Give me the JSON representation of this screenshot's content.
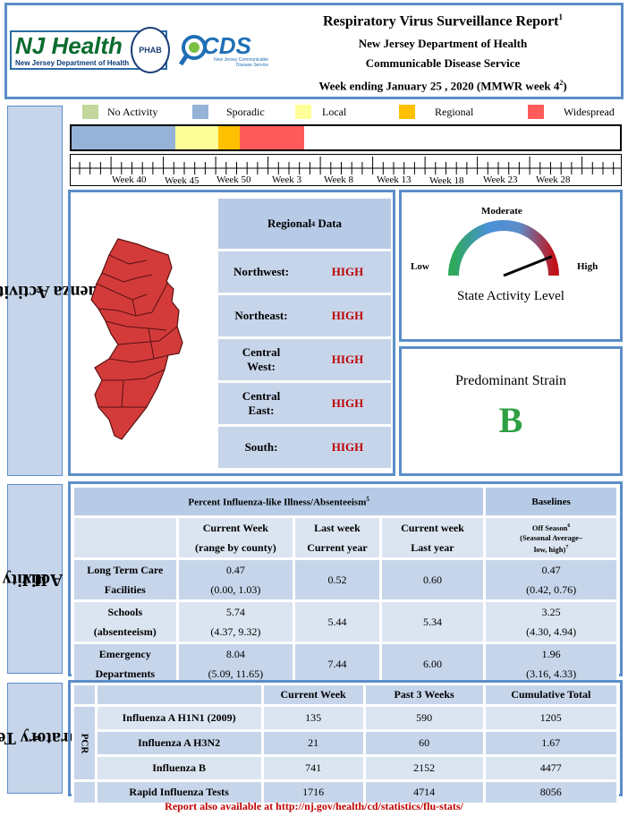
{
  "header": {
    "title": "Respiratory Virus Surveillance Report",
    "title_sup": "1",
    "line2": "New Jersey Department of Health",
    "line3": "Communicable Disease Service",
    "line4_pre": "Week ending January 25 , 2020 (MMWR week 4",
    "line4_sup": "2",
    "line4_post": ")",
    "logo_nj_main": "NJ Health",
    "logo_nj_sub": "New Jersey Department of Health",
    "logo_badge": "PHAB",
    "logo_cds": "CDS",
    "logo_cds_sub": "New Jersey Communicable Disease Service"
  },
  "legend": [
    {
      "label": "No Activity",
      "color": "#c3d69b"
    },
    {
      "label": "Sporadic",
      "color": "#95b3d7"
    },
    {
      "label": "Local",
      "color": "#ffff99"
    },
    {
      "label": "Regional",
      "color": "#ffc000"
    },
    {
      "label": "Widespread",
      "color": "#ff5b5b"
    }
  ],
  "timeline": {
    "weeks": [
      "Week 40",
      "Week 45",
      "Week 50",
      "Week 3",
      "Week 8",
      "Week 13",
      "Week 18",
      "Week 23",
      "Week 28"
    ]
  },
  "sidebars": {
    "influenza": "Influenza Activity Level",
    "influenza_sup": "3",
    "ili_pre": "ILI",
    "ili_sup": "5",
    "ili_post": " Activity",
    "lab": "Laboratory Testing",
    "lab_sup": "8"
  },
  "regional": {
    "title": "Regional",
    "title_sup": "4",
    "title_post": " Data",
    "rows": [
      {
        "region": "Northwest:",
        "level": "HIGH"
      },
      {
        "region": "Northeast:",
        "level": "HIGH"
      },
      {
        "region": "Central West:",
        "level": "HIGH"
      },
      {
        "region": "Central East:",
        "level": "HIGH"
      },
      {
        "region": "South:",
        "level": "HIGH"
      }
    ]
  },
  "gauge": {
    "top_label": "Moderate",
    "low_label": "Low",
    "high_label": "High",
    "caption": "State Activity Level",
    "level_fraction": 0.88
  },
  "strain": {
    "title": "Predominant Strain",
    "value": "B",
    "color": "#2ea043"
  },
  "ili": {
    "title": "Percent Influenza-like Illness/Absenteeism",
    "title_sup": "5",
    "baselines": "Baselines",
    "col1_a": "Current Week",
    "col1_b": "(range by county)",
    "col2_a": "Last week",
    "col2_b": "Current year",
    "col3_a": "Current week",
    "col3_b": "Last year",
    "col4_a": "Off Season",
    "col4_a_sup": "6",
    "col4_b": "(Seasonal Average–",
    "col4_c": "low, high)",
    "col4_c_sup": "7",
    "rows": [
      {
        "name_a": "Long Term Care",
        "name_b": "Facilities",
        "cur": "0.47",
        "range": "(0.00, 1.03)",
        "last": "0.52",
        "lastyr": "0.60",
        "base": "0.47",
        "base_range": "(0.42, 0.76)"
      },
      {
        "name_a": "Schools",
        "name_b": "(absenteeism)",
        "cur": "5.74",
        "range": "(4.37, 9.32)",
        "last": "5.44",
        "lastyr": "5.34",
        "base": "3.25",
        "base_range": "(4.30, 4.94)"
      },
      {
        "name_a": "Emergency",
        "name_b": "Departments",
        "cur": "8.04",
        "range": "(5.09, 11.65)",
        "last": "7.44",
        "lastyr": "6.00",
        "base": "1.96",
        "base_range": "(3.16, 4.33)"
      }
    ]
  },
  "lab": {
    "headers": [
      "Current Week",
      "Past 3 Weeks",
      "Cumulative Total"
    ],
    "pcr": "PCR",
    "rows": [
      {
        "name": "Influenza A H1N1 (2009)",
        "cur": "135",
        "past": "590",
        "cum": "1205"
      },
      {
        "name": "Influenza A H3N2",
        "cur": "21",
        "past": "60",
        "cum": "1.67"
      },
      {
        "name": "Influenza B",
        "cur": "741",
        "past": "2152",
        "cum": "4477"
      },
      {
        "name": "Rapid Influenza Tests",
        "cur": "1716",
        "past": "4714",
        "cum": "8056"
      }
    ]
  },
  "footer": "Report also available at http://nj.gov/health/cd/statistics/flu-stats/"
}
